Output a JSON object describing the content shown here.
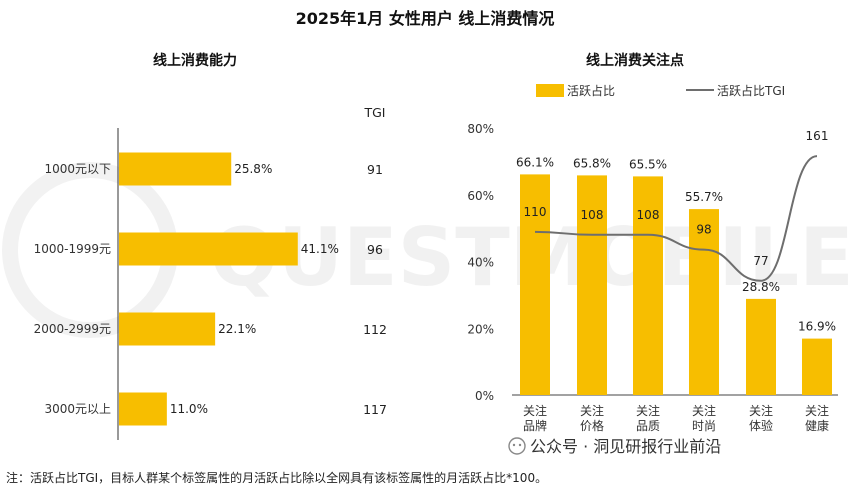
{
  "title": "2025年1月 女性用户 线上消费情况",
  "left_chart_title": "线上消费能力",
  "right_chart_title": "线上消费关注点",
  "tgi_header": "TGI",
  "note": "注：活跃占比TGI，目标人群某个标签属性的月活跃占比除以全网具有该标签属性的月活跃占比*100。",
  "watermark": "公众号 · 洞见研报行业前沿",
  "colors": {
    "bar": "#F7BE00",
    "line": "#6E6E6E",
    "tgi_highlight": "#E02020",
    "axis": "#333333"
  },
  "chart_data": [
    {
      "type": "bar",
      "orientation": "horizontal",
      "title": "线上消费能力",
      "categories": [
        "1000元以下",
        "1000-1999元",
        "2000-2999元",
        "3000元以上"
      ],
      "values": [
        25.8,
        41.1,
        22.1,
        11.0
      ],
      "value_labels": [
        "25.8%",
        "41.1%",
        "22.1%",
        "11.0%"
      ],
      "tgi_header": "TGI",
      "tgi": [
        91,
        96,
        112,
        117
      ],
      "tgi_labels": [
        "91",
        "96",
        "112",
        "117"
      ],
      "tgi_highlight": [
        false,
        false,
        true,
        true
      ],
      "xlim": [
        0,
        50
      ]
    },
    {
      "type": "bar",
      "title": "线上消费关注点",
      "categories": [
        "关注品牌",
        "关注价格",
        "关注品质",
        "关注时尚",
        "关注体验",
        "关注健康"
      ],
      "category_lines": [
        [
          "关注",
          "品牌"
        ],
        [
          "关注",
          "价格"
        ],
        [
          "关注",
          "品质"
        ],
        [
          "关注",
          "时尚"
        ],
        [
          "关注",
          "体验"
        ],
        [
          "关注",
          "健康"
        ]
      ],
      "series": [
        {
          "name": "活跃占比",
          "kind": "bar",
          "values": [
            66.1,
            65.8,
            65.5,
            55.7,
            28.8,
            16.9
          ],
          "labels": [
            "66.1%",
            "65.8%",
            "65.5%",
            "55.7%",
            "28.8%",
            "16.9%"
          ]
        },
        {
          "name": "活跃占比TGI",
          "kind": "line",
          "values": [
            110,
            108,
            108,
            98,
            77,
            161
          ],
          "labels": [
            "110",
            "108",
            "108",
            "98",
            "77",
            "161"
          ]
        }
      ],
      "ylim": [
        0,
        80
      ],
      "yticks": [
        0,
        20,
        40,
        60,
        80
      ],
      "ytick_labels": [
        "0%",
        "20%",
        "40%",
        "60%",
        "80%"
      ],
      "y2lim": [
        0,
        180
      ],
      "legend_position": "top"
    }
  ]
}
